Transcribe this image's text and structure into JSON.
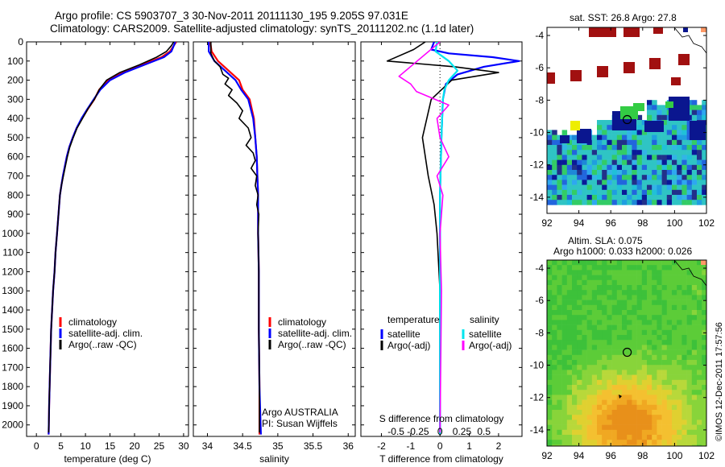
{
  "title": {
    "line1": "Argo profile: CS 5903707_3 30-Nov-2011 20111130_195 9.205S 97.031E",
    "line2": "Climatology: CARS2009. Satellite-adjusted climatology: synTS_20111202.nc (1.1d later)"
  },
  "stamp": "©IMOS 12-Dec-2011 17:57:56",
  "chart_data": [
    {
      "type": "line",
      "id": "temperature-profile",
      "xlabel": "temperature (deg C)",
      "ylabel": "",
      "xlim": [
        -2,
        31
      ],
      "ylim": [
        2060,
        0
      ],
      "xticks": [
        0,
        5,
        10,
        15,
        20,
        25,
        30
      ],
      "yticks": [
        0,
        100,
        200,
        300,
        400,
        500,
        600,
        700,
        800,
        900,
        1000,
        1100,
        1200,
        1300,
        1400,
        1500,
        1600,
        1700,
        1800,
        1900,
        2000
      ],
      "legend": [
        "climatology",
        "satellite-adj. clim.",
        "Argo(..raw -QC)"
      ],
      "legend_colors": [
        "#ff0000",
        "#0000ff",
        "#000000"
      ],
      "series": [
        {
          "name": "climatology",
          "color": "#ff0000",
          "x": [
            28.5,
            28.0,
            27.2,
            25.5,
            21.5,
            17.5,
            14.5,
            12.8,
            11.8,
            10.5,
            9.3,
            8.2,
            7.4,
            6.7,
            6.2,
            5.8,
            5.4,
            5.1,
            4.8,
            4.5,
            4.2,
            3.9,
            3.7,
            3.4,
            3.2,
            3.0,
            2.8,
            2.6,
            2.5
          ],
          "y": [
            0,
            20,
            50,
            80,
            120,
            160,
            200,
            250,
            300,
            350,
            400,
            450,
            500,
            550,
            600,
            650,
            700,
            750,
            800,
            900,
            1000,
            1100,
            1200,
            1300,
            1400,
            1500,
            1700,
            1900,
            2050
          ]
        },
        {
          "name": "satellite-adj. clim.",
          "color": "#0000ff",
          "x": [
            28.3,
            28.0,
            27.5,
            26.0,
            22.0,
            18.0,
            15.0,
            13.0,
            11.7,
            10.4,
            9.2,
            8.2,
            7.4,
            6.7,
            6.2,
            5.8,
            5.4,
            5.1,
            4.8,
            4.5,
            4.2,
            3.9,
            3.7,
            3.4,
            3.2,
            3.0,
            2.8,
            2.6,
            2.5
          ],
          "y": [
            0,
            20,
            50,
            80,
            120,
            160,
            200,
            250,
            300,
            350,
            400,
            450,
            500,
            550,
            600,
            650,
            700,
            750,
            800,
            900,
            1000,
            1100,
            1200,
            1300,
            1400,
            1500,
            1700,
            1900,
            2050
          ]
        },
        {
          "name": "Argo(..raw -QC)",
          "color": "#000000",
          "x": [
            28.0,
            27.5,
            26.5,
            24.5,
            21.0,
            17.0,
            14.3,
            12.8,
            11.8,
            10.5,
            9.4,
            8.3,
            7.5,
            6.8,
            6.3,
            5.9,
            5.5,
            5.1,
            4.8,
            4.5,
            4.2,
            3.9,
            3.7,
            3.4,
            3.2,
            3.0,
            2.8,
            2.6,
            2.5
          ],
          "y": [
            0,
            20,
            50,
            80,
            120,
            160,
            200,
            250,
            300,
            350,
            400,
            450,
            500,
            550,
            600,
            650,
            700,
            750,
            800,
            900,
            1000,
            1100,
            1200,
            1300,
            1400,
            1500,
            1700,
            1900,
            2040
          ]
        }
      ]
    },
    {
      "type": "line",
      "id": "salinity-profile",
      "xlabel": "salinity",
      "ylabel": "",
      "xlim": [
        33.8,
        36.1
      ],
      "ylim": [
        2060,
        0
      ],
      "xticks": [
        34,
        34.5,
        35,
        35.5,
        36
      ],
      "legend": [
        "climatology",
        "satellite-adj. clim.",
        "Argo(..raw -QC)"
      ],
      "legend_colors": [
        "#ff0000",
        "#0000ff",
        "#000000"
      ],
      "annotation_line1": "Argo AUSTRALIA",
      "annotation_line2": "PI: Susan Wijffels",
      "series": [
        {
          "name": "climatology",
          "color": "#ff0000",
          "x": [
            34.04,
            34.06,
            34.15,
            34.3,
            34.45,
            34.5,
            34.6,
            34.66,
            34.68,
            34.7,
            34.71,
            34.72,
            34.72,
            34.73,
            34.73,
            34.74,
            34.74
          ],
          "y": [
            0,
            50,
            100,
            150,
            200,
            250,
            300,
            400,
            500,
            600,
            700,
            800,
            1000,
            1200,
            1500,
            1800,
            2050
          ]
        },
        {
          "name": "satellite-adj. clim.",
          "color": "#0000ff",
          "x": [
            34.02,
            34.02,
            34.1,
            34.25,
            34.4,
            34.48,
            34.58,
            34.65,
            34.68,
            34.7,
            34.71,
            34.72,
            34.72,
            34.73,
            34.73,
            34.74,
            34.76
          ],
          "y": [
            0,
            50,
            100,
            150,
            200,
            250,
            300,
            400,
            500,
            600,
            700,
            800,
            1000,
            1200,
            1500,
            1800,
            2050
          ]
        },
        {
          "name": "Argo(..raw -QC)",
          "color": "#000000",
          "x": [
            34.05,
            34.05,
            34.1,
            34.18,
            34.22,
            34.3,
            34.25,
            34.35,
            34.3,
            34.42,
            34.5,
            34.45,
            34.58,
            34.62,
            34.55,
            34.65,
            34.68,
            34.62,
            34.7,
            34.68,
            34.72,
            34.7,
            34.73,
            34.72,
            34.73,
            34.73,
            34.74,
            34.74
          ],
          "y": [
            0,
            60,
            100,
            130,
            170,
            190,
            220,
            250,
            280,
            320,
            360,
            400,
            450,
            500,
            540,
            580,
            620,
            660,
            700,
            750,
            800,
            850,
            900,
            1000,
            1200,
            1500,
            1800,
            2040
          ]
        }
      ]
    },
    {
      "type": "line",
      "id": "difference-profile",
      "xlabel": "T difference from climatology",
      "xlabel_top": "S difference from climatology",
      "xlim": [
        -2.7,
        2.8
      ],
      "ylim": [
        2060,
        0
      ],
      "xticks": [
        -2,
        -1,
        0,
        1,
        2
      ],
      "xtick_labels": [
        "-2",
        "-1",
        "0",
        "1",
        "2"
      ],
      "xticks_s": [
        -1.5,
        -0.75,
        0,
        0.75,
        1.5
      ],
      "xtick_labels_s": [
        "-0.5",
        "-0.25",
        "0",
        "0.25",
        "0.5"
      ],
      "legend_t_title": "temperature",
      "legend_s_title": "salinity",
      "legend_t": [
        "satellite",
        "Argo(-adj)"
      ],
      "legend_t_colors": [
        "#0000ff",
        "#000000"
      ],
      "legend_s": [
        "satellite",
        "Argo(-adj)"
      ],
      "legend_s_colors": [
        "#00e5ee",
        "#ff00ff"
      ],
      "series": [
        {
          "name": "temperature satellite",
          "color": "#0000ff",
          "x": [
            -0.2,
            -0.3,
            0.3,
            1.8,
            2.7,
            1.5,
            0.6,
            0.2,
            0.1,
            0.05,
            0.0,
            0.0,
            0.0
          ],
          "y": [
            0,
            40,
            60,
            80,
            100,
            130,
            170,
            220,
            300,
            500,
            800,
            1200,
            2050
          ]
        },
        {
          "name": "temperature Argo(-adj)",
          "color": "#000000",
          "x": [
            -0.5,
            -0.9,
            -1.8,
            0.5,
            2.0,
            0.4,
            -0.3,
            -0.6,
            -0.4,
            -0.2,
            -0.1,
            0.0,
            0.0
          ],
          "y": [
            0,
            40,
            100,
            130,
            160,
            200,
            300,
            500,
            700,
            850,
            1000,
            1300,
            2040
          ]
        },
        {
          "name": "salinity satellite",
          "color": "#00e5ee",
          "x": [
            -0.1,
            -0.15,
            0.3,
            0.6,
            0.3,
            0.15,
            0.1,
            0.05,
            0.0,
            0.0,
            0.0
          ],
          "y": [
            0,
            50,
            100,
            150,
            200,
            250,
            300,
            500,
            800,
            1200,
            2050
          ]
        },
        {
          "name": "salinity Argo(-adj)",
          "color": "#ff00ff",
          "x": [
            0.0,
            -1.4,
            -1.0,
            -0.8,
            0.3,
            -0.1,
            0.0,
            0.3,
            -0.1,
            0.1,
            0.0,
            0.05,
            0.0
          ],
          "y": [
            0,
            180,
            220,
            260,
            330,
            400,
            500,
            600,
            700,
            800,
            1000,
            1300,
            2040
          ]
        }
      ]
    },
    {
      "type": "heatmap",
      "id": "sst-map",
      "title": "sat. SST: 26.8  Argo: 27.8",
      "xlim": [
        92,
        102
      ],
      "ylim": [
        -15,
        -3.5
      ],
      "xticks": [
        92,
        94,
        96,
        98,
        100,
        102
      ],
      "yticks": [
        -4,
        -6,
        -8,
        -10,
        -12,
        -14
      ],
      "marker": {
        "lon": 97.03,
        "lat": -9.2
      }
    },
    {
      "type": "heatmap",
      "id": "sla-map",
      "title_line1": "Altim. SLA: 0.075",
      "title_line2": "Argo h1000: 0.033  h2000: 0.026",
      "xlim": [
        92,
        102
      ],
      "ylim": [
        -15,
        -3.5
      ],
      "xticks": [
        92,
        94,
        96,
        98,
        100,
        102
      ],
      "yticks": [
        -4,
        -6,
        -8,
        -10,
        -12,
        -14
      ],
      "marker": {
        "lon": 97.03,
        "lat": -9.2
      }
    }
  ]
}
